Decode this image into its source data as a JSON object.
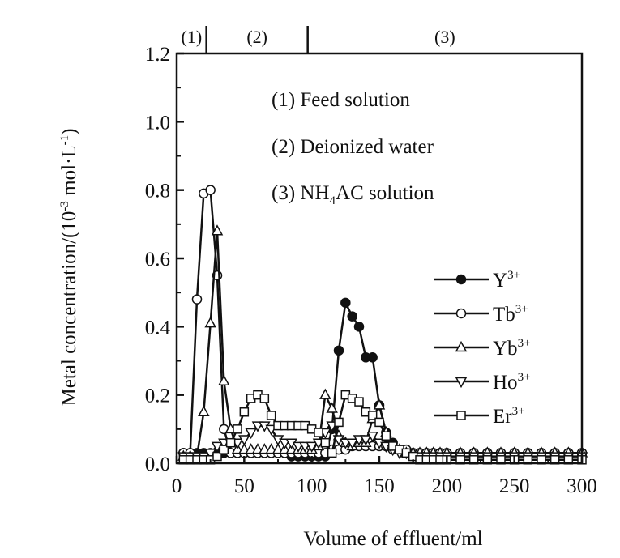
{
  "chart_data": {
    "type": "line",
    "xlabel": "Volume of effluent/ml",
    "ylabel": "Metal concentration/(10",
    "ylabel_exp": "-3",
    "ylabel_unit": "mol·L",
    "ylabel_unit_exp": "-1",
    "ylabel_close": ")",
    "xlim": [
      0,
      300
    ],
    "ylim": [
      0.0,
      1.2
    ],
    "xticks": [
      "0",
      "50",
      "100",
      "150",
      "200",
      "250",
      "300"
    ],
    "yticks": [
      "0.0",
      "0.2",
      "0.4",
      "0.6",
      "0.8",
      "1.0",
      "1.2"
    ],
    "regions": [
      {
        "label": "(1)",
        "x_start": 0,
        "x_end": 22
      },
      {
        "label": "(2)",
        "x_start": 22,
        "x_end": 97
      },
      {
        "label": "(3)",
        "x_start": 97,
        "x_end": 300
      }
    ],
    "annotations": [
      {
        "num": "(1)",
        "text": "Feed solution"
      },
      {
        "num": "(2)",
        "text": "Deionized water"
      },
      {
        "num": "(3)",
        "text": "NH",
        "sub": "4",
        "rest": "AC solution"
      }
    ],
    "legend_position": "right",
    "series": [
      {
        "name": "Y",
        "sup": "3+",
        "marker": "circle-filled",
        "x": [
          5,
          10,
          15,
          20,
          25,
          30,
          35,
          40,
          45,
          50,
          55,
          60,
          65,
          70,
          75,
          80,
          85,
          90,
          95,
          100,
          105,
          110,
          115,
          120,
          125,
          130,
          135,
          140,
          145,
          150,
          155,
          160,
          165,
          170,
          175,
          180,
          185,
          190,
          195,
          200,
          210,
          220,
          230,
          240,
          250,
          260,
          270,
          280,
          290,
          300
        ],
        "values": [
          0.03,
          0.03,
          0.03,
          0.03,
          0.03,
          0.03,
          0.03,
          0.03,
          0.03,
          0.03,
          0.03,
          0.03,
          0.03,
          0.03,
          0.03,
          0.03,
          0.02,
          0.02,
          0.02,
          0.02,
          0.02,
          0.02,
          0.1,
          0.33,
          0.47,
          0.43,
          0.4,
          0.31,
          0.31,
          0.17,
          0.09,
          0.06,
          0.04,
          0.03,
          0.03,
          0.03,
          0.03,
          0.03,
          0.03,
          0.03,
          0.03,
          0.03,
          0.03,
          0.03,
          0.03,
          0.03,
          0.03,
          0.03,
          0.03,
          0.03
        ]
      },
      {
        "name": "Tb",
        "sup": "3+",
        "marker": "circle-open",
        "x": [
          5,
          10,
          15,
          20,
          25,
          30,
          35,
          40,
          45,
          50,
          55,
          60,
          65,
          70,
          75,
          80,
          85,
          90,
          95,
          100,
          105,
          110,
          115,
          120,
          125,
          130,
          135,
          140,
          145,
          150,
          155,
          160,
          165,
          170,
          175,
          180,
          185,
          190,
          195,
          200,
          210,
          220,
          230,
          240,
          250,
          260,
          270,
          280,
          290,
          300
        ],
        "values": [
          0.03,
          0.03,
          0.48,
          0.79,
          0.8,
          0.55,
          0.1,
          0.03,
          0.03,
          0.03,
          0.03,
          0.03,
          0.03,
          0.03,
          0.03,
          0.03,
          0.03,
          0.03,
          0.03,
          0.03,
          0.03,
          0.03,
          0.04,
          0.04,
          0.04,
          0.05,
          0.05,
          0.05,
          0.05,
          0.05,
          0.05,
          0.04,
          0.04,
          0.04,
          0.03,
          0.03,
          0.03,
          0.03,
          0.03,
          0.03,
          0.03,
          0.03,
          0.03,
          0.03,
          0.03,
          0.03,
          0.03,
          0.03,
          0.03,
          0.03
        ]
      },
      {
        "name": "Yb",
        "sup": "3+",
        "marker": "triangle-up",
        "x": [
          5,
          10,
          15,
          20,
          25,
          30,
          35,
          40,
          45,
          50,
          55,
          60,
          65,
          70,
          75,
          80,
          85,
          90,
          95,
          100,
          105,
          110,
          115,
          120,
          125,
          130,
          135,
          140,
          145,
          150,
          155,
          160,
          165,
          170,
          175,
          180,
          185,
          190,
          195,
          200,
          210,
          220,
          230,
          240,
          250,
          260,
          270,
          280,
          290,
          300
        ],
        "values": [
          0.02,
          0.02,
          0.02,
          0.15,
          0.41,
          0.68,
          0.24,
          0.1,
          0.04,
          0.04,
          0.04,
          0.04,
          0.04,
          0.04,
          0.04,
          0.04,
          0.04,
          0.04,
          0.04,
          0.04,
          0.05,
          0.2,
          0.16,
          0.08,
          0.06,
          0.05,
          0.06,
          0.06,
          0.13,
          0.17,
          0.09,
          0.05,
          0.04,
          0.03,
          0.03,
          0.03,
          0.03,
          0.03,
          0.03,
          0.03,
          0.03,
          0.03,
          0.03,
          0.03,
          0.03,
          0.03,
          0.03,
          0.03,
          0.03,
          0.03
        ]
      },
      {
        "name": "Ho",
        "sup": "3+",
        "marker": "triangle-down",
        "x": [
          5,
          10,
          15,
          20,
          25,
          30,
          35,
          40,
          45,
          50,
          55,
          60,
          65,
          70,
          75,
          80,
          85,
          90,
          95,
          100,
          105,
          110,
          115,
          120,
          125,
          130,
          135,
          140,
          145,
          150,
          155,
          160,
          165,
          170,
          175,
          180,
          185,
          190,
          195,
          200,
          210,
          220,
          230,
          240,
          250,
          260,
          270,
          280,
          290,
          300
        ],
        "values": [
          0.02,
          0.02,
          0.02,
          0.02,
          0.03,
          0.05,
          0.06,
          0.06,
          0.06,
          0.07,
          0.09,
          0.11,
          0.11,
          0.1,
          0.07,
          0.06,
          0.06,
          0.05,
          0.05,
          0.05,
          0.06,
          0.09,
          0.11,
          0.07,
          0.06,
          0.06,
          0.07,
          0.07,
          0.08,
          0.06,
          0.05,
          0.04,
          0.03,
          0.03,
          0.02,
          0.02,
          0.02,
          0.02,
          0.02,
          0.02,
          0.02,
          0.02,
          0.02,
          0.02,
          0.02,
          0.02,
          0.02,
          0.02,
          0.02,
          0.02
        ]
      },
      {
        "name": "Er",
        "sup": "3+",
        "marker": "square-open",
        "x": [
          5,
          10,
          15,
          20,
          25,
          30,
          35,
          40,
          45,
          50,
          55,
          60,
          65,
          70,
          75,
          80,
          85,
          90,
          95,
          100,
          105,
          110,
          115,
          120,
          125,
          130,
          135,
          140,
          145,
          150,
          155,
          160,
          165,
          170,
          175,
          180,
          185,
          190,
          195,
          200,
          210,
          220,
          230,
          240,
          250,
          260,
          270,
          280,
          290,
          300
        ],
        "values": [
          0.01,
          0.01,
          0.01,
          0.01,
          0.01,
          0.02,
          0.04,
          0.06,
          0.1,
          0.15,
          0.19,
          0.2,
          0.19,
          0.14,
          0.11,
          0.11,
          0.11,
          0.11,
          0.11,
          0.1,
          0.09,
          0.06,
          0.03,
          0.12,
          0.2,
          0.19,
          0.18,
          0.15,
          0.14,
          0.12,
          0.08,
          0.05,
          0.04,
          0.03,
          0.02,
          0.01,
          0.01,
          0.01,
          0.01,
          0.01,
          0.01,
          0.01,
          0.01,
          0.01,
          0.01,
          0.01,
          0.01,
          0.01,
          0.01,
          0.01
        ]
      }
    ]
  }
}
